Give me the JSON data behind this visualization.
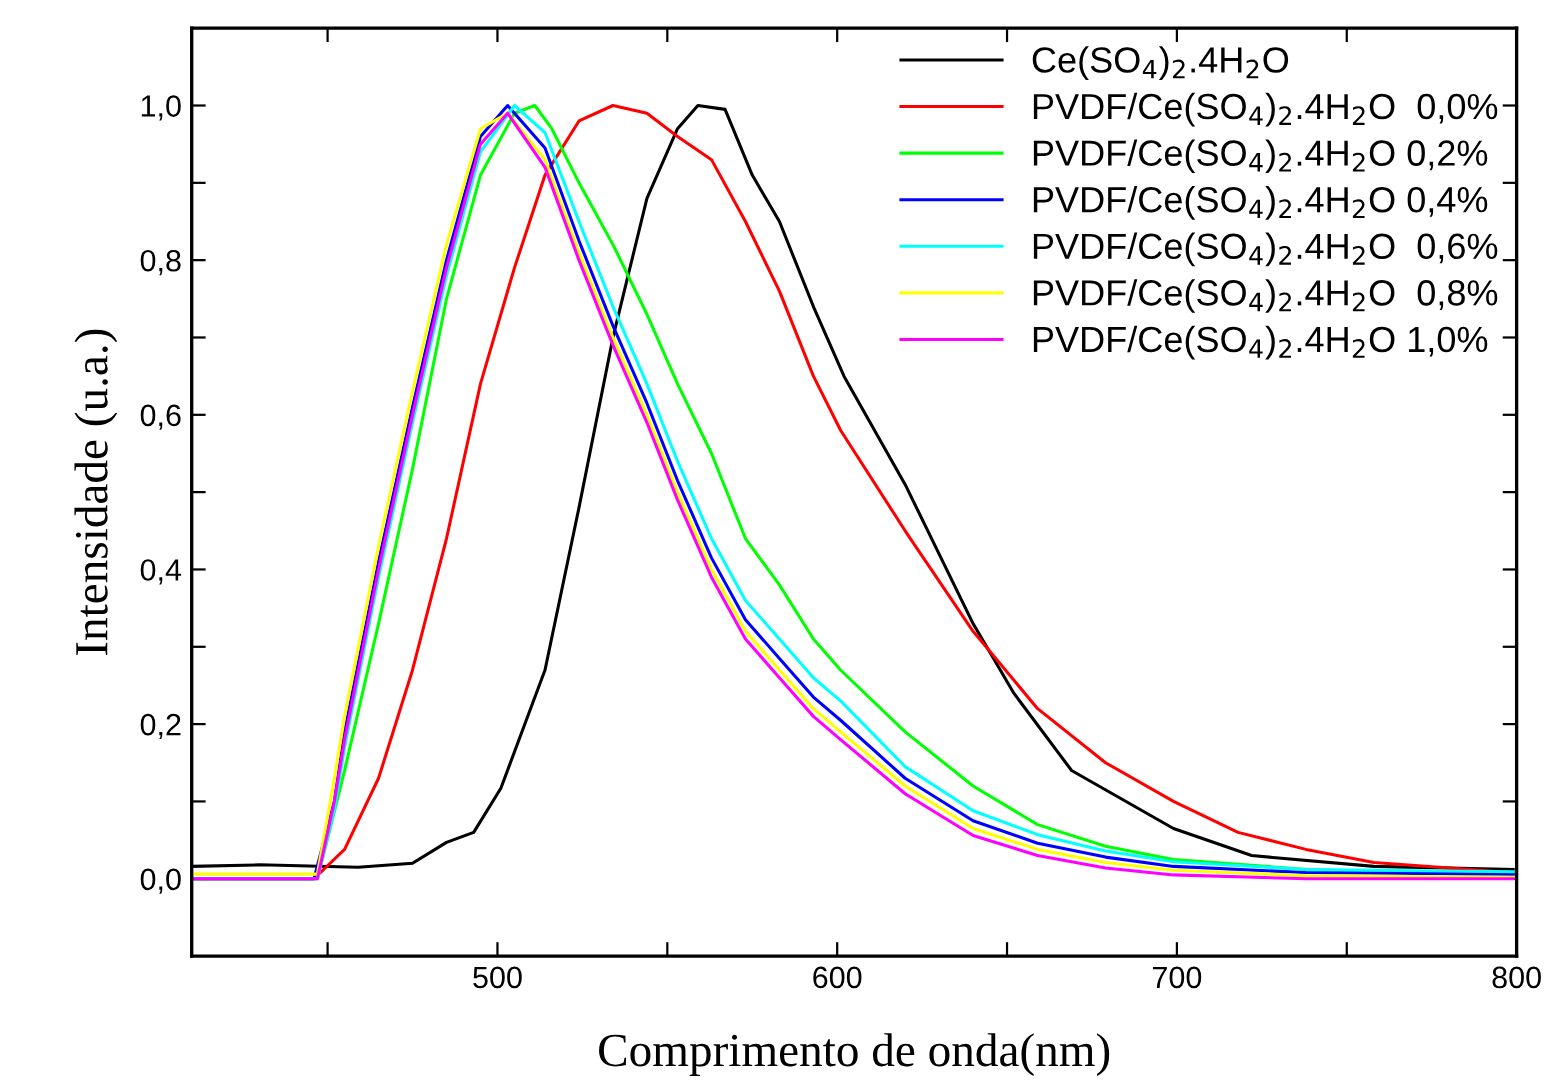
{
  "chart_data": {
    "type": "line",
    "xlabel": "Comprimento de onda(nm)",
    "ylabel": "Intensidade (u.a.)",
    "xlim": [
      410,
      800
    ],
    "ylim": [
      -0.1,
      1.1
    ],
    "xticks": [
      {
        "value": 450,
        "label": null
      },
      500,
      {
        "value": 550,
        "label": null
      },
      600,
      {
        "value": 650,
        "label": null
      },
      700,
      {
        "value": 750,
        "label": null
      },
      800
    ],
    "yticks": [
      {
        "value": 0,
        "label": "0,0"
      },
      {
        "value": 0.1,
        "label": null
      },
      {
        "value": 0.2,
        "label": "0,2"
      },
      {
        "value": 0.3,
        "label": null
      },
      {
        "value": 0.4,
        "label": "0,4"
      },
      {
        "value": 0.5,
        "label": null
      },
      {
        "value": 0.6,
        "label": "0,6"
      },
      {
        "value": 0.7,
        "label": null
      },
      {
        "value": 0.8,
        "label": "0,8"
      },
      {
        "value": 0.9,
        "label": null
      },
      {
        "value": 1.0,
        "label": "1,0"
      }
    ],
    "legend": "top right",
    "series": [
      {
        "name": "Ce(SO$_{4}$)$_{2}$.4H$_{2}$O",
        "color": "#000000",
        "x": [
          410,
          430,
          459,
          475,
          485,
          493,
          501,
          514,
          524,
          534,
          544,
          553,
          559,
          567,
          575,
          583,
          593,
          602,
          620,
          640,
          652,
          669,
          699,
          722,
          758,
          799
        ],
        "values": [
          0.016,
          0.018,
          0.015,
          0.02,
          0.047,
          0.06,
          0.117,
          0.27,
          0.48,
          0.7,
          0.88,
          0.97,
          1.0,
          0.995,
          0.91,
          0.85,
          0.74,
          0.65,
          0.51,
          0.33,
          0.24,
          0.14,
          0.065,
          0.03,
          0.016,
          0.012
        ]
      },
      {
        "name": "PVDF/Ce(SO$_{4}$)$_{2}$.4H$_{2}$O  0,0%",
        "color": "#ff0000",
        "x": [
          410,
          446,
          455,
          465,
          475,
          485,
          495,
          505,
          514,
          524,
          534,
          544,
          553,
          563,
          573,
          583,
          593,
          601,
          620,
          640,
          659,
          679,
          699,
          718,
          738,
          758,
          799
        ],
        "values": [
          0.0,
          0.0,
          0.038,
          0.13,
          0.27,
          0.44,
          0.64,
          0.79,
          0.91,
          0.98,
          1.0,
          0.99,
          0.96,
          0.93,
          0.85,
          0.76,
          0.65,
          0.58,
          0.45,
          0.32,
          0.22,
          0.15,
          0.1,
          0.06,
          0.038,
          0.021,
          0.008
        ]
      },
      {
        "name": "PVDF/Ce(SO$_{4}$)$_{2}$.4H$_{2}$O 0,2%",
        "color": "#00ff00",
        "x": [
          410,
          447,
          455,
          465,
          475,
          485,
          495,
          505,
          511,
          516,
          524,
          534,
          544,
          553,
          563,
          573,
          583,
          593,
          601,
          620,
          640,
          659,
          679,
          699,
          738,
          799
        ],
        "values": [
          0.0,
          0.0,
          0.14,
          0.33,
          0.53,
          0.75,
          0.91,
          0.99,
          1.0,
          0.97,
          0.9,
          0.82,
          0.73,
          0.64,
          0.55,
          0.44,
          0.38,
          0.31,
          0.27,
          0.19,
          0.12,
          0.07,
          0.042,
          0.025,
          0.012,
          0.004
        ]
      },
      {
        "name": "PVDF/Ce(SO$_{4}$)$_{2}$.4H$_{2}$O 0,4%",
        "color": "#0000ff",
        "x": [
          410,
          446,
          452,
          455,
          465,
          475,
          485,
          495,
          503,
          514,
          524,
          534,
          544,
          553,
          563,
          573,
          583,
          593,
          601,
          620,
          640,
          659,
          679,
          699,
          738,
          799
        ],
        "values": [
          0.0,
          0.0,
          0.1,
          0.19,
          0.41,
          0.61,
          0.8,
          0.96,
          1.0,
          0.945,
          0.825,
          0.715,
          0.615,
          0.515,
          0.415,
          0.335,
          0.285,
          0.235,
          0.205,
          0.13,
          0.075,
          0.046,
          0.028,
          0.016,
          0.008,
          0.006
        ]
      },
      {
        "name": "PVDF/Ce(SO$_{4}$)$_{2}$.4H$_{2}$O  0,6%",
        "color": "#00ffff",
        "x": [
          410,
          447,
          452,
          455,
          465,
          475,
          485,
          495,
          505,
          514,
          524,
          534,
          544,
          553,
          563,
          573,
          583,
          593,
          601,
          620,
          640,
          659,
          679,
          699,
          738,
          799
        ],
        "values": [
          0.0,
          0.0,
          0.09,
          0.17,
          0.39,
          0.59,
          0.78,
          0.94,
          1.0,
          0.965,
          0.85,
          0.74,
          0.64,
          0.54,
          0.44,
          0.36,
          0.31,
          0.26,
          0.23,
          0.145,
          0.088,
          0.057,
          0.036,
          0.022,
          0.012,
          0.009
        ]
      },
      {
        "name": "PVDF/Ce(SO$_{4}$)$_{2}$.4H$_{2}$O  0,8%",
        "color": "#ffff00",
        "x": [
          410,
          447,
          452,
          455,
          465,
          475,
          485,
          495,
          503,
          514,
          524,
          534,
          544,
          553,
          563,
          573,
          583,
          593,
          601,
          620,
          640,
          659,
          679,
          699,
          738,
          799
        ],
        "values": [
          0.006,
          0.006,
          0.13,
          0.21,
          0.43,
          0.63,
          0.82,
          0.97,
          0.99,
          0.93,
          0.81,
          0.7,
          0.6,
          0.5,
          0.4,
          0.32,
          0.27,
          0.22,
          0.19,
          0.12,
          0.065,
          0.038,
          0.021,
          0.011,
          0.004,
          0.002
        ]
      },
      {
        "name": "PVDF/Ce(SO$_{4}$)$_{2}$.4H$_{2}$O 1,0%",
        "color": "#ff00ff",
        "x": [
          410,
          447,
          452,
          455,
          465,
          475,
          485,
          495,
          503,
          514,
          524,
          534,
          544,
          553,
          563,
          573,
          583,
          593,
          601,
          620,
          640,
          659,
          679,
          699,
          738,
          799
        ],
        "values": [
          0.0,
          0.0,
          0.1,
          0.18,
          0.4,
          0.6,
          0.79,
          0.95,
          0.99,
          0.92,
          0.8,
          0.69,
          0.59,
          0.49,
          0.39,
          0.31,
          0.26,
          0.21,
          0.18,
          0.11,
          0.056,
          0.03,
          0.014,
          0.005,
          0.0,
          0.0
        ]
      }
    ]
  }
}
